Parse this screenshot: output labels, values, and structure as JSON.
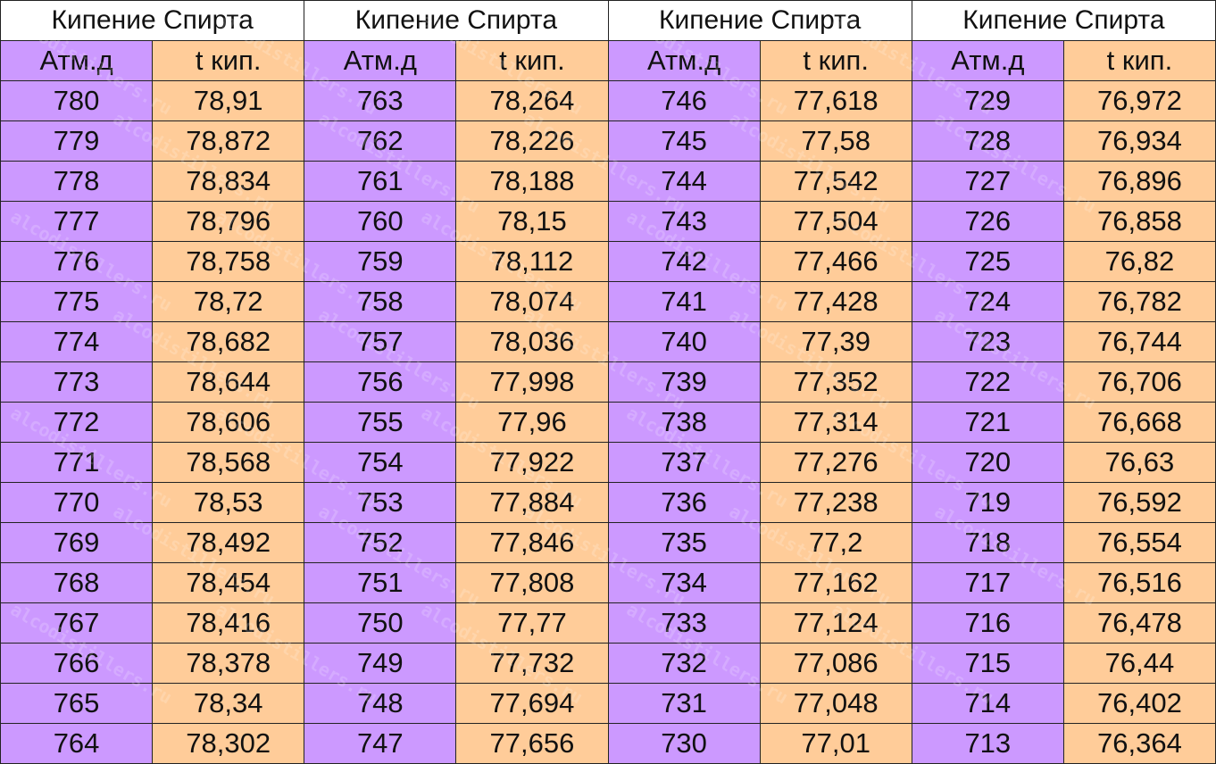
{
  "colors": {
    "pressure_column": "#cc99ff",
    "temperature_column": "#ffcc99"
  },
  "watermark": "alcodistillers.ru",
  "blocks": [
    {
      "title": "Кипение Спирта",
      "headers": [
        "Атм.д",
        "t кип."
      ],
      "rows": [
        [
          "780",
          "78,91"
        ],
        [
          "779",
          "78,872"
        ],
        [
          "778",
          "78,834"
        ],
        [
          "777",
          "78,796"
        ],
        [
          "776",
          "78,758"
        ],
        [
          "775",
          "78,72"
        ],
        [
          "774",
          "78,682"
        ],
        [
          "773",
          "78,644"
        ],
        [
          "772",
          "78,606"
        ],
        [
          "771",
          "78,568"
        ],
        [
          "770",
          "78,53"
        ],
        [
          "769",
          "78,492"
        ],
        [
          "768",
          "78,454"
        ],
        [
          "767",
          "78,416"
        ],
        [
          "766",
          "78,378"
        ],
        [
          "765",
          "78,34"
        ],
        [
          "764",
          "78,302"
        ]
      ]
    },
    {
      "title": "Кипение Спирта",
      "headers": [
        "Атм.д",
        "t кип."
      ],
      "rows": [
        [
          "763",
          "78,264"
        ],
        [
          "762",
          "78,226"
        ],
        [
          "761",
          "78,188"
        ],
        [
          "760",
          "78,15"
        ],
        [
          "759",
          "78,112"
        ],
        [
          "758",
          "78,074"
        ],
        [
          "757",
          "78,036"
        ],
        [
          "756",
          "77,998"
        ],
        [
          "755",
          "77,96"
        ],
        [
          "754",
          "77,922"
        ],
        [
          "753",
          "77,884"
        ],
        [
          "752",
          "77,846"
        ],
        [
          "751",
          "77,808"
        ],
        [
          "750",
          "77,77"
        ],
        [
          "749",
          "77,732"
        ],
        [
          "748",
          "77,694"
        ],
        [
          "747",
          "77,656"
        ]
      ]
    },
    {
      "title": "Кипение Спирта",
      "headers": [
        "Атм.д",
        "t кип."
      ],
      "rows": [
        [
          "746",
          "77,618"
        ],
        [
          "745",
          "77,58"
        ],
        [
          "744",
          "77,542"
        ],
        [
          "743",
          "77,504"
        ],
        [
          "742",
          "77,466"
        ],
        [
          "741",
          "77,428"
        ],
        [
          "740",
          "77,39"
        ],
        [
          "739",
          "77,352"
        ],
        [
          "738",
          "77,314"
        ],
        [
          "737",
          "77,276"
        ],
        [
          "736",
          "77,238"
        ],
        [
          "735",
          "77,2"
        ],
        [
          "734",
          "77,162"
        ],
        [
          "733",
          "77,124"
        ],
        [
          "732",
          "77,086"
        ],
        [
          "731",
          "77,048"
        ],
        [
          "730",
          "77,01"
        ]
      ]
    },
    {
      "title": "Кипение Спирта",
      "headers": [
        "Атм.д",
        "t кип."
      ],
      "rows": [
        [
          "729",
          "76,972"
        ],
        [
          "728",
          "76,934"
        ],
        [
          "727",
          "76,896"
        ],
        [
          "726",
          "76,858"
        ],
        [
          "725",
          "76,82"
        ],
        [
          "724",
          "76,782"
        ],
        [
          "723",
          "76,744"
        ],
        [
          "722",
          "76,706"
        ],
        [
          "721",
          "76,668"
        ],
        [
          "720",
          "76,63"
        ],
        [
          "719",
          "76,592"
        ],
        [
          "718",
          "76,554"
        ],
        [
          "717",
          "76,516"
        ],
        [
          "716",
          "76,478"
        ],
        [
          "715",
          "76,44"
        ],
        [
          "714",
          "76,402"
        ],
        [
          "713",
          "76,364"
        ]
      ]
    }
  ]
}
